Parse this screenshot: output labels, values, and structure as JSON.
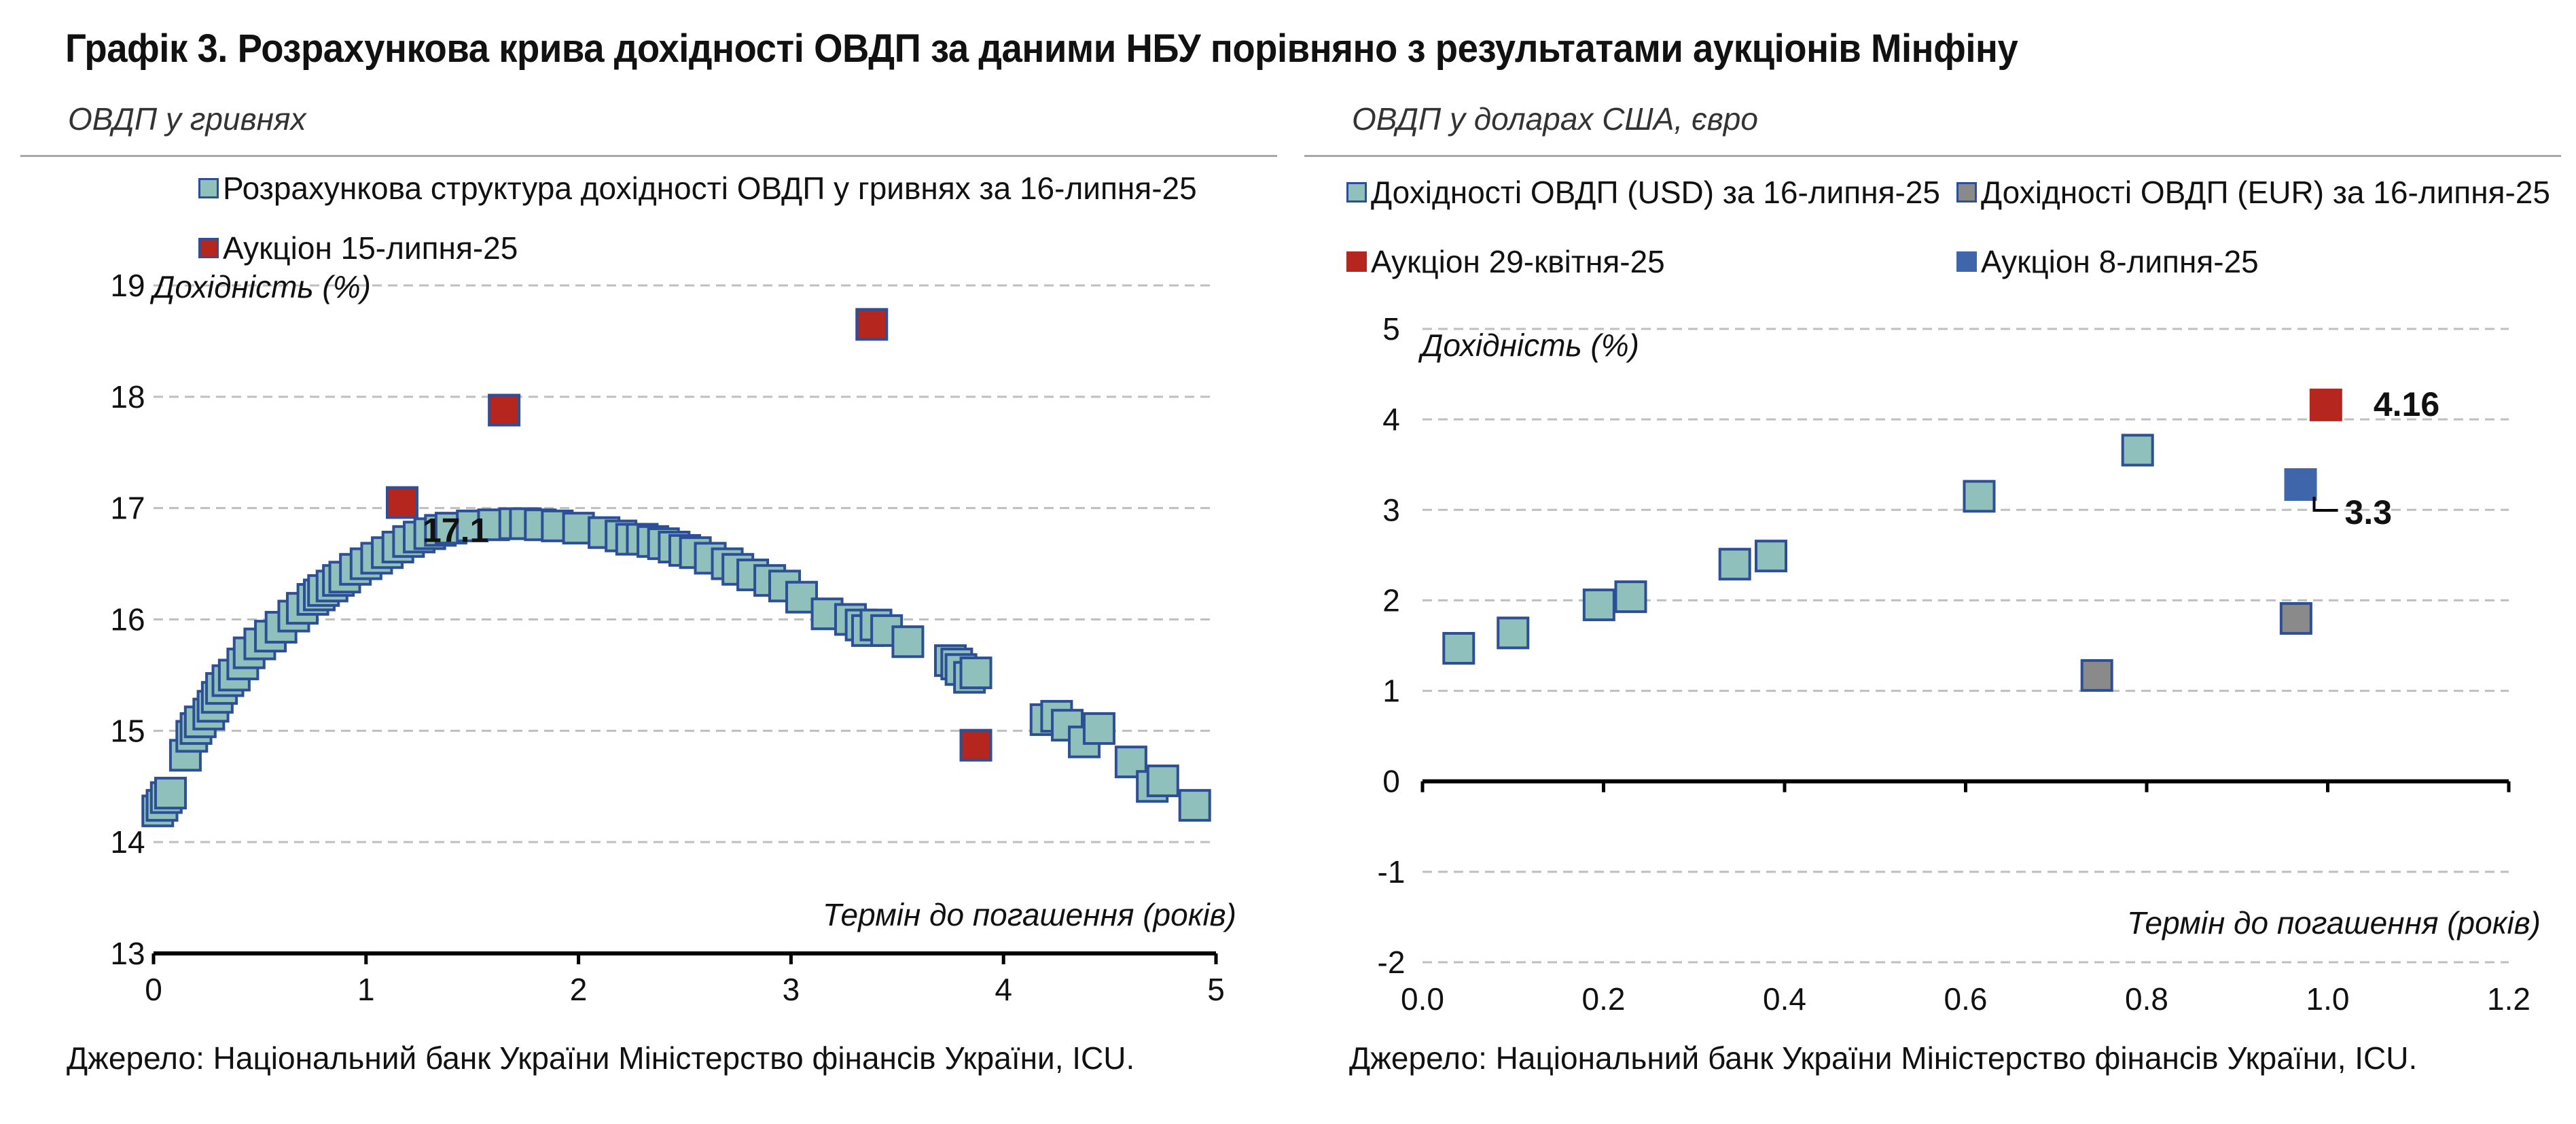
{
  "title": "Графік 3. Розрахункова крива дохідності ОВДП за даними НБУ порівняно з результатами аукціонів Мінфіну",
  "colors": {
    "uah_curve": "#8fc0bb",
    "usd_curve": "#8fc0bb",
    "eur_curve": "#8a8a8a",
    "auction_red": "#b5261e",
    "auction_blue": "#3f66aa",
    "marker_border": "#2d4f96",
    "grid": "#bfbfbf",
    "axis": "#000000"
  },
  "panels": {
    "left": {
      "subtitle": "ОВДП у гривнях",
      "source": "Джерело: Національний банк України Міністерство фінансів України, ICU.",
      "legend": [
        {
          "label": "Розрахункова структура дохідності ОВДП у гривнях за 16-липня-25",
          "color": "#8fc0bb"
        },
        {
          "label": "Аукціон 15-липня-25",
          "color": "#b5261e"
        }
      ]
    },
    "right": {
      "subtitle": "ОВДП у доларах США, євро",
      "source": "Джерело: Національний банк України Міністерство фінансів України, ICU.",
      "legend": [
        {
          "label": "Дохідності ОВДП (USD) за 16-липня-25",
          "color": "#8fc0bb"
        },
        {
          "label": "Дохідності ОВДП (EUR) за 16-липня-25",
          "color": "#8a8a8a"
        },
        {
          "label": "Аукціон 29-квітня-25",
          "color": "#b5261e"
        },
        {
          "label": "Аукціон 8-липня-25",
          "color": "#3f66aa"
        }
      ]
    }
  },
  "chart_data": [
    {
      "type": "scatter",
      "title": "",
      "xlabel": "Термін до погашення (років)",
      "ylabel": "Дохідність (%)",
      "xlim": [
        0,
        5
      ],
      "ylim": [
        13,
        19
      ],
      "xticks": [
        "0",
        "1",
        "2",
        "3",
        "4",
        "5"
      ],
      "yticks": [
        "13",
        "14",
        "15",
        "16",
        "17",
        "18",
        "19"
      ],
      "grid": true,
      "legend_position": "top-left",
      "series": [
        {
          "name": "Розрахункова структура дохідності ОВДП у гривнях за 16-липня-25",
          "points": [
            [
              0.02,
              14.28
            ],
            [
              0.04,
              14.33
            ],
            [
              0.06,
              14.4
            ],
            [
              0.08,
              14.44
            ],
            [
              0.15,
              14.78
            ],
            [
              0.18,
              14.95
            ],
            [
              0.2,
              15.02
            ],
            [
              0.22,
              15.08
            ],
            [
              0.26,
              15.15
            ],
            [
              0.28,
              15.22
            ],
            [
              0.3,
              15.3
            ],
            [
              0.32,
              15.38
            ],
            [
              0.35,
              15.45
            ],
            [
              0.38,
              15.5
            ],
            [
              0.42,
              15.6
            ],
            [
              0.45,
              15.7
            ],
            [
              0.5,
              15.78
            ],
            [
              0.55,
              15.85
            ],
            [
              0.6,
              15.93
            ],
            [
              0.66,
              16.03
            ],
            [
              0.7,
              16.1
            ],
            [
              0.75,
              16.18
            ],
            [
              0.78,
              16.22
            ],
            [
              0.8,
              16.26
            ],
            [
              0.84,
              16.3
            ],
            [
              0.87,
              16.35
            ],
            [
              0.9,
              16.38
            ],
            [
              0.95,
              16.45
            ],
            [
              1.0,
              16.5
            ],
            [
              1.05,
              16.55
            ],
            [
              1.1,
              16.6
            ],
            [
              1.15,
              16.65
            ],
            [
              1.2,
              16.7
            ],
            [
              1.25,
              16.74
            ],
            [
              1.3,
              16.77
            ],
            [
              1.35,
              16.8
            ],
            [
              1.4,
              16.82
            ],
            [
              1.5,
              16.84
            ],
            [
              1.6,
              16.85
            ],
            [
              1.7,
              16.86
            ],
            [
              1.75,
              16.86
            ],
            [
              1.82,
              16.85
            ],
            [
              1.9,
              16.84
            ],
            [
              2.0,
              16.82
            ],
            [
              2.12,
              16.78
            ],
            [
              2.2,
              16.75
            ],
            [
              2.25,
              16.72
            ],
            [
              2.3,
              16.72
            ],
            [
              2.35,
              16.7
            ],
            [
              2.4,
              16.68
            ],
            [
              2.45,
              16.65
            ],
            [
              2.5,
              16.62
            ],
            [
              2.55,
              16.6
            ],
            [
              2.62,
              16.55
            ],
            [
              2.7,
              16.5
            ],
            [
              2.75,
              16.45
            ],
            [
              2.82,
              16.4
            ],
            [
              2.9,
              16.35
            ],
            [
              2.97,
              16.3
            ],
            [
              3.05,
              16.2
            ],
            [
              3.17,
              16.05
            ],
            [
              3.28,
              16.0
            ],
            [
              3.33,
              15.95
            ],
            [
              3.36,
              15.9
            ],
            [
              3.4,
              15.95
            ],
            [
              3.45,
              15.9
            ],
            [
              3.55,
              15.8
            ],
            [
              3.75,
              15.63
            ],
            [
              3.78,
              15.6
            ],
            [
              3.8,
              15.55
            ],
            [
              3.84,
              15.48
            ],
            [
              3.87,
              15.52
            ],
            [
              4.2,
              15.1
            ],
            [
              4.25,
              15.13
            ],
            [
              4.3,
              15.05
            ],
            [
              4.38,
              14.9
            ],
            [
              4.45,
              15.02
            ],
            [
              4.6,
              14.72
            ],
            [
              4.7,
              14.5
            ],
            [
              4.75,
              14.55
            ],
            [
              4.9,
              14.33
            ]
          ]
        },
        {
          "name": "Аукціон 15-липня-25",
          "points": [
            [
              1.17,
              17.05
            ],
            [
              1.65,
              17.88
            ],
            [
              3.38,
              18.65
            ],
            [
              3.87,
              14.87
            ]
          ]
        }
      ],
      "annotations": [
        {
          "text": "17.1",
          "x": 1.17,
          "y": 17.05
        }
      ]
    },
    {
      "type": "scatter",
      "title": "",
      "xlabel": "Термін до погашення (років)",
      "ylabel": "Дохідність (%)",
      "xlim": [
        0.0,
        1.2
      ],
      "ylim": [
        -2,
        5
      ],
      "xticks": [
        "0.0",
        "0.2",
        "0.4",
        "0.6",
        "0.8",
        "1.0",
        "1.2"
      ],
      "yticks": [
        "-2",
        "-1",
        "0",
        "1",
        "2",
        "3",
        "4",
        "5"
      ],
      "grid": true,
      "legend_position": "top",
      "series": [
        {
          "name": "Дохідності ОВДП (USD) за 16-липня-25",
          "points": [
            [
              0.04,
              1.47
            ],
            [
              0.1,
              1.64
            ],
            [
              0.195,
              1.95
            ],
            [
              0.23,
              2.04
            ],
            [
              0.345,
              2.4
            ],
            [
              0.385,
              2.49
            ],
            [
              0.615,
              3.15
            ],
            [
              0.79,
              3.66
            ]
          ]
        },
        {
          "name": "Дохідності ОВДП (EUR) за 16-липня-25",
          "points": [
            [
              0.745,
              1.17
            ],
            [
              0.965,
              1.8
            ]
          ]
        },
        {
          "name": "Аукціон 29-квітня-25",
          "points": [
            [
              0.998,
              4.16
            ]
          ]
        },
        {
          "name": "Аукціон 8-липня-25",
          "points": [
            [
              0.97,
              3.28
            ]
          ]
        }
      ],
      "annotations": [
        {
          "text": "4.16",
          "x": 0.998,
          "y": 4.16
        },
        {
          "text": "3.3",
          "x": 0.97,
          "y": 3.28
        }
      ]
    }
  ]
}
